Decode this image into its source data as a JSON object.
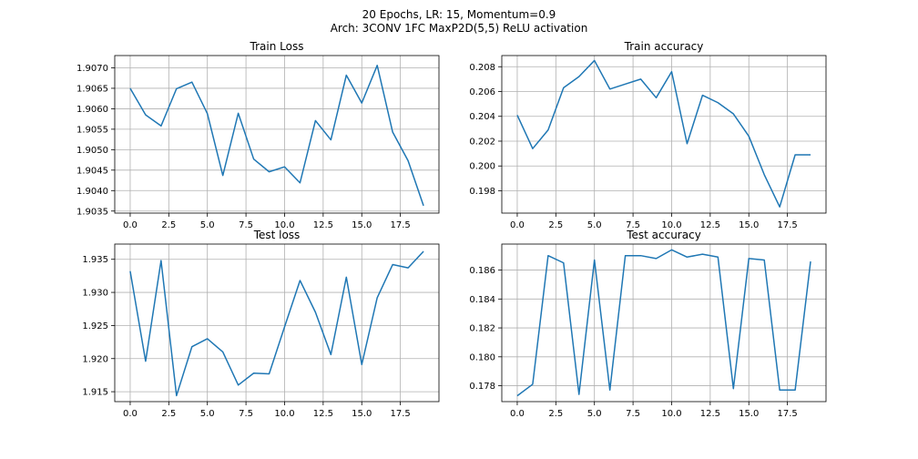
{
  "figure": {
    "title_line1": "20 Epochs, LR: 15, Momentum=0.9",
    "title_line2": "Arch: 3CONV 1FC MaxP2D(5,5) ReLU activation"
  },
  "colors": {
    "series": "#1f77b4"
  },
  "chart_data": [
    {
      "type": "line",
      "title": "Train Loss",
      "x": [
        0,
        1,
        2,
        3,
        4,
        5,
        6,
        7,
        8,
        9,
        10,
        11,
        12,
        13,
        14,
        15,
        16,
        17,
        18,
        19
      ],
      "series": [
        {
          "values": [
            1.9065,
            1.90585,
            1.90558,
            1.90649,
            1.90665,
            1.90588,
            1.90437,
            1.90589,
            1.90477,
            1.90446,
            1.90458,
            1.90419,
            1.90571,
            1.90524,
            1.90682,
            1.90614,
            1.90706,
            1.90543,
            1.90473,
            1.90363
          ]
        }
      ],
      "xlim": [
        -1,
        20
      ],
      "ylim": [
        1.90345,
        1.9073
      ],
      "xticks": [
        0,
        2.5,
        5,
        7.5,
        10,
        12.5,
        15,
        17.5
      ],
      "xtick_labels": [
        "0.0",
        "2.5",
        "5.0",
        "7.5",
        "10.0",
        "12.5",
        "15.0",
        "17.5"
      ],
      "yticks": [
        1.9035,
        1.904,
        1.9045,
        1.905,
        1.9055,
        1.906,
        1.9065,
        1.907
      ],
      "ytick_labels": [
        "1.9035",
        "1.9040",
        "1.9045",
        "1.9050",
        "1.9055",
        "1.9060",
        "1.9065",
        "1.9070"
      ],
      "grid": true
    },
    {
      "type": "line",
      "title": "Train accuracy",
      "x": [
        0,
        1,
        2,
        3,
        4,
        5,
        6,
        7,
        8,
        9,
        10,
        11,
        12,
        13,
        14,
        15,
        16,
        17,
        18,
        19
      ],
      "series": [
        {
          "values": [
            0.2041,
            0.2014,
            0.2029,
            0.2063,
            0.2072,
            0.2085,
            0.2062,
            0.2066,
            0.207,
            0.2055,
            0.2076,
            0.2018,
            0.2057,
            0.2051,
            0.2042,
            0.2024,
            0.1993,
            0.1967,
            0.2009,
            0.2009
          ]
        }
      ],
      "xlim": [
        -1,
        20
      ],
      "ylim": [
        0.1962,
        0.2089
      ],
      "xticks": [
        0,
        2.5,
        5,
        7.5,
        10,
        12.5,
        15,
        17.5
      ],
      "xtick_labels": [
        "0.0",
        "2.5",
        "5.0",
        "7.5",
        "10.0",
        "12.5",
        "15.0",
        "17.5"
      ],
      "yticks": [
        0.198,
        0.2,
        0.202,
        0.204,
        0.206,
        0.208
      ],
      "ytick_labels": [
        "0.198",
        "0.200",
        "0.202",
        "0.204",
        "0.206",
        "0.208"
      ],
      "grid": true
    },
    {
      "type": "line",
      "title": "Test loss",
      "x": [
        0,
        1,
        2,
        3,
        4,
        5,
        6,
        7,
        8,
        9,
        10,
        11,
        12,
        13,
        14,
        15,
        16,
        17,
        18,
        19
      ],
      "series": [
        {
          "values": [
            1.9332,
            1.9196,
            1.9348,
            1.9144,
            1.9218,
            1.923,
            1.921,
            1.916,
            1.9178,
            1.9177,
            1.9248,
            1.9318,
            1.927,
            1.9206,
            1.9323,
            1.9191,
            1.9292,
            1.9342,
            1.9337,
            1.9362
          ]
        }
      ],
      "xlim": [
        -1,
        20
      ],
      "ylim": [
        1.9135,
        1.9373
      ],
      "xticks": [
        0,
        2.5,
        5,
        7.5,
        10,
        12.5,
        15,
        17.5
      ],
      "xtick_labels": [
        "0.0",
        "2.5",
        "5.0",
        "7.5",
        "10.0",
        "12.5",
        "15.0",
        "17.5"
      ],
      "yticks": [
        1.915,
        1.92,
        1.925,
        1.93,
        1.935
      ],
      "ytick_labels": [
        "1.915",
        "1.920",
        "1.925",
        "1.930",
        "1.935"
      ],
      "grid": true
    },
    {
      "type": "line",
      "title": "Test accuracy",
      "x": [
        0,
        1,
        2,
        3,
        4,
        5,
        6,
        7,
        8,
        9,
        10,
        11,
        12,
        13,
        14,
        15,
        16,
        17,
        18,
        19
      ],
      "series": [
        {
          "values": [
            0.1773,
            0.1781,
            0.187,
            0.1865,
            0.1774,
            0.1867,
            0.1777,
            0.187,
            0.187,
            0.1868,
            0.1874,
            0.1869,
            0.1871,
            0.1869,
            0.1778,
            0.1868,
            0.1867,
            0.1777,
            0.1777,
            0.1866
          ]
        }
      ],
      "xlim": [
        -1,
        20
      ],
      "ylim": [
        0.1769,
        0.1878
      ],
      "xticks": [
        0,
        2.5,
        5,
        7.5,
        10,
        12.5,
        15,
        17.5
      ],
      "xtick_labels": [
        "0.0",
        "2.5",
        "5.0",
        "7.5",
        "10.0",
        "12.5",
        "15.0",
        "17.5"
      ],
      "yticks": [
        0.178,
        0.18,
        0.182,
        0.184,
        0.186
      ],
      "ytick_labels": [
        "0.178",
        "0.180",
        "0.182",
        "0.184",
        "0.186"
      ],
      "grid": true
    }
  ]
}
